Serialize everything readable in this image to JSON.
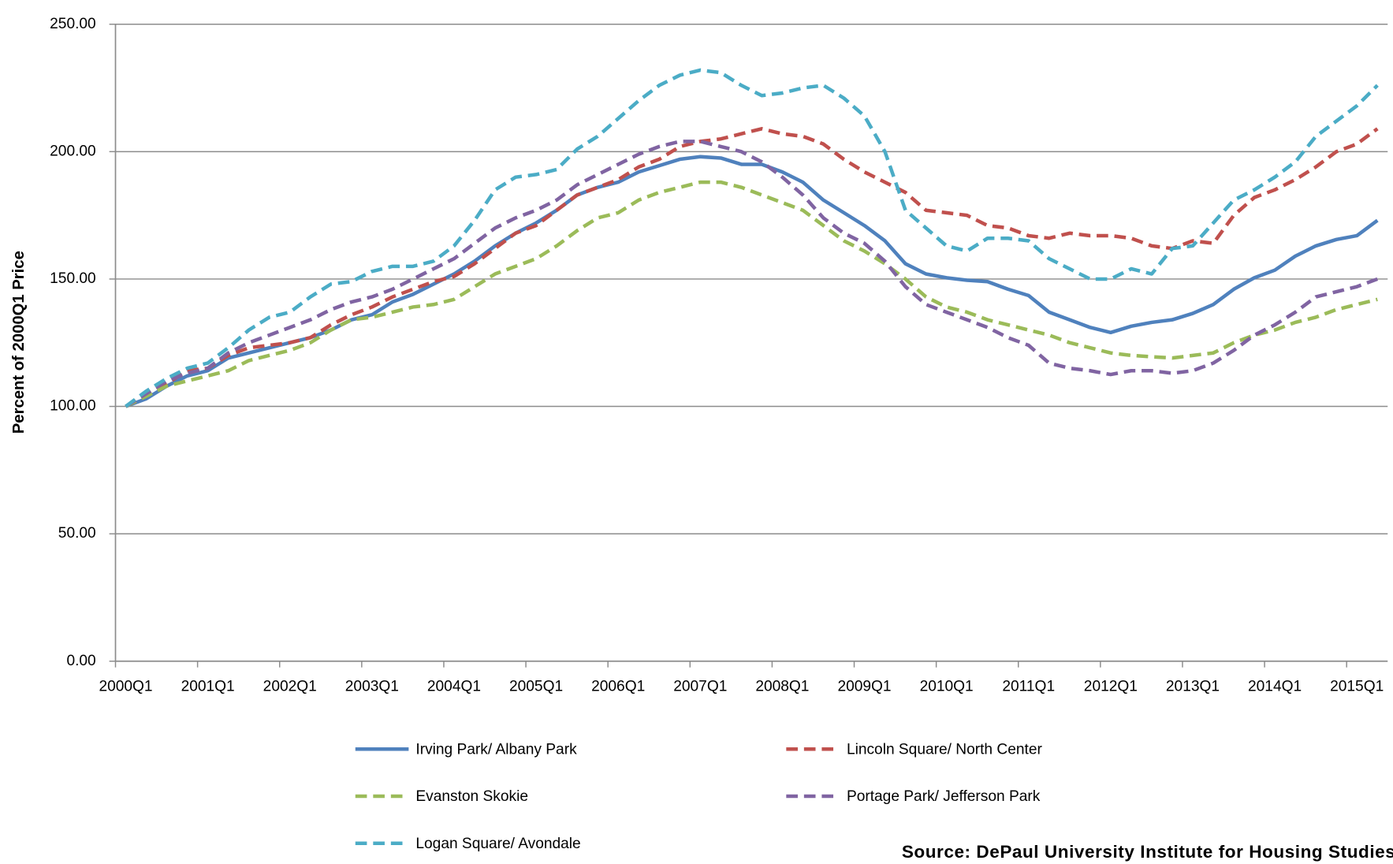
{
  "chart_data": {
    "type": "line",
    "ylabel": "Percent of 2000Q1 Price",
    "source": "Source: DePaul University Institute for Housing Studies",
    "categories": [
      "2000Q1",
      null,
      null,
      null,
      "2001Q1",
      null,
      null,
      null,
      "2002Q1",
      null,
      null,
      null,
      "2003Q1",
      null,
      null,
      null,
      "2004Q1",
      null,
      null,
      null,
      "2005Q1",
      null,
      null,
      null,
      "2006Q1",
      null,
      null,
      null,
      "2007Q1",
      null,
      null,
      null,
      "2008Q1",
      null,
      null,
      null,
      "2009Q1",
      null,
      null,
      null,
      "2010Q1",
      null,
      null,
      null,
      "2011Q1",
      null,
      null,
      null,
      "2012Q1",
      null,
      null,
      null,
      "2013Q1",
      null,
      null,
      null,
      "2014Q1",
      null,
      null,
      null,
      "2015Q1",
      null
    ],
    "ylim": [
      0,
      250
    ],
    "yticks": [
      {
        "value": 0,
        "label": "0.00"
      },
      {
        "value": 50,
        "label": "50.00"
      },
      {
        "value": 100,
        "label": "100.00"
      },
      {
        "value": 150,
        "label": "150.00"
      },
      {
        "value": 200,
        "label": "200.00"
      },
      {
        "value": 250,
        "label": "250.00"
      }
    ],
    "grid": true,
    "legend": "bottom",
    "series": [
      {
        "name": "Irving Park/ Albany Park",
        "color": "#4f81bd",
        "dashed": false,
        "values": [
          100,
          103,
          108,
          112,
          114,
          119,
          121,
          123,
          125,
          127,
          130,
          134,
          136,
          141,
          144,
          148,
          152,
          157,
          163,
          168,
          172,
          177,
          183,
          186,
          188,
          192,
          194.5,
          197,
          198,
          197.5,
          195,
          195,
          192,
          188,
          181,
          176,
          171,
          165,
          156,
          152,
          150.5,
          149.5,
          149,
          146,
          143.5,
          137,
          134,
          131,
          129,
          131.5,
          133,
          134,
          136.5,
          140,
          146,
          150.5,
          153.5,
          159,
          163,
          165.5,
          167,
          173
        ]
      },
      {
        "name": "Lincoln Square/ North Center",
        "color": "#c0504d",
        "dashed": true,
        "values": [
          100,
          104,
          109,
          114,
          115,
          120,
          123,
          124,
          125,
          127,
          132,
          136,
          139,
          143,
          146,
          149,
          151,
          156,
          162,
          168,
          171,
          177,
          183,
          186,
          189,
          194,
          197,
          202,
          204,
          205,
          207,
          209,
          207,
          206,
          203,
          197,
          192,
          188,
          184,
          177,
          176,
          175,
          171,
          170,
          167,
          166,
          168,
          167,
          167,
          166,
          163,
          162,
          165,
          164,
          175,
          182,
          185,
          189,
          194,
          200,
          203,
          209
        ]
      },
      {
        "name": "Evanston Skokie",
        "color": "#9bbb59",
        "dashed": true,
        "values": [
          100,
          104,
          108,
          110,
          112,
          114,
          118,
          120,
          122,
          125,
          130,
          134,
          135,
          137,
          139,
          140,
          142,
          147,
          152,
          155,
          158,
          163,
          169,
          174,
          176,
          181,
          184,
          186,
          188,
          188,
          186,
          183,
          180,
          177,
          171,
          165,
          161,
          156,
          150,
          143,
          139,
          137,
          134,
          132,
          130,
          128,
          125,
          123,
          121,
          120,
          119.5,
          119,
          120,
          121,
          125,
          128,
          130,
          133,
          135,
          138,
          140,
          142
        ]
      },
      {
        "name": "Portage Park/ Jefferson Park",
        "color": "#8064a2",
        "dashed": true,
        "values": [
          100,
          105,
          110,
          113,
          115,
          121,
          125,
          128,
          131,
          134,
          138,
          141,
          143,
          146,
          150,
          154,
          158,
          164,
          170,
          174,
          177,
          181,
          187,
          191,
          195,
          199,
          202,
          204,
          204,
          202,
          200,
          196,
          190,
          183,
          174,
          168,
          164,
          157,
          147,
          140,
          137,
          134,
          131,
          127,
          124,
          117,
          115,
          114,
          112.5,
          114,
          114,
          113,
          114,
          117,
          122,
          128,
          132,
          137,
          143,
          145,
          147,
          150
        ]
      },
      {
        "name": "Logan Square/ Avondale",
        "color": "#4bacc6",
        "dashed": true,
        "values": [
          100,
          106,
          111,
          115,
          117,
          123,
          130,
          135,
          137,
          143,
          148,
          149,
          153,
          155,
          155,
          157,
          163,
          173,
          185,
          190,
          191,
          193,
          201,
          206,
          213,
          220,
          226,
          230,
          232,
          231,
          226,
          222,
          223,
          225,
          226,
          221,
          214,
          200,
          177,
          170,
          163,
          161,
          166,
          166,
          165,
          158,
          154,
          150,
          150,
          154,
          152,
          162,
          163,
          172,
          181,
          185,
          190,
          196,
          206,
          212,
          218,
          226
        ]
      }
    ]
  }
}
